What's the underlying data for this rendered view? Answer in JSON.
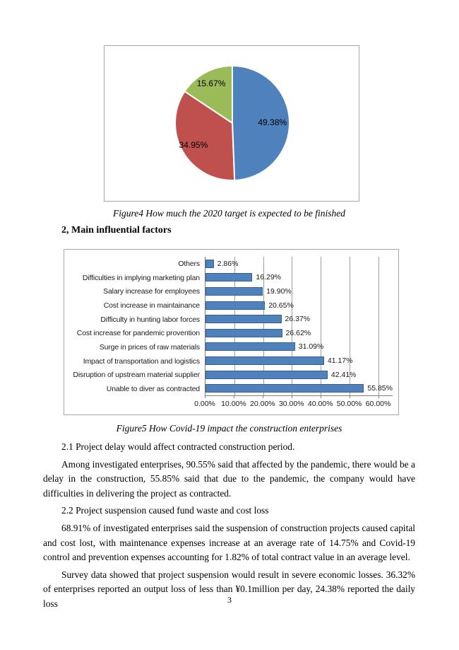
{
  "page": {
    "number": "3"
  },
  "figure4": {
    "caption": "Figure4 How much the 2020 target is expected to be finished"
  },
  "section": {
    "heading": "2, Main influential factors"
  },
  "figure5": {
    "caption": "Figure5 How Covid-19 impact the construction enterprises"
  },
  "body": {
    "h21": "2.1 Project delay would affect contracted construction period.",
    "p21": "Among investigated enterprises, 90.55% said that affected by the pandemic, there would be a delay in the construction, 55.85% said that due to the pandemic, the company would have difficulties in delivering the project as contracted.",
    "h22": "2.2 Project suspension caused fund waste and cost loss",
    "p22": "68.91% of investigated enterprises said the suspension of construction projects caused capital and cost lost, with maintenance expenses increase at an average rate of 14.75% and Covid-19 control and prevention expenses accounting for 1.82% of total contract value in an average level.",
    "p23": "Survey data showed that project suspension would result in severe economic losses. 36.32% of enterprises reported an output loss of less than ¥0.1million per day, 24.38% reported the daily loss"
  },
  "chart_data": [
    {
      "type": "pie",
      "title": "How much the 2020 target is expected to be finished",
      "labels": [
        "49.38%",
        "34.95%",
        "15.67%"
      ],
      "values": [
        49.38,
        34.95,
        15.67
      ],
      "colors": [
        "#4f81bd",
        "#c0504d",
        "#9bbb59"
      ],
      "start_angle_deg_from_top": 0,
      "direction": "clockwise",
      "legend": "none",
      "slice_separator_color": "#ffffff"
    },
    {
      "type": "bar",
      "orientation": "horizontal",
      "title": "How Covid-19 impact the construction enterprises",
      "categories": [
        "Others",
        "Difficulties in implying marketing plan",
        "Salary increase for employees",
        "Cost increase in maintainance",
        "Difficulty in hunting labor forces",
        "Cost increase for pandemic provention",
        "Surge in prices of raw materials",
        "Impact of transportation and logistics",
        "Disruption of upstream material supplier",
        "Unable to diver as contracted"
      ],
      "values": [
        2.86,
        16.29,
        19.9,
        20.65,
        26.37,
        26.62,
        31.09,
        41.17,
        42.41,
        55.85
      ],
      "value_labels": [
        "2.86%",
        "16.29%",
        "19.90%",
        "20.65%",
        "26.37%",
        "26.62%",
        "31.09%",
        "41.17%",
        "42.41%",
        "55.85%"
      ],
      "bar_color": "#4f81bd",
      "bar_border_color": "#3a5f8e",
      "xticks": [
        0,
        10,
        20,
        30,
        40,
        50,
        60
      ],
      "xtick_labels": [
        "0.00%",
        "10.00%",
        "20.00%",
        "30.00%",
        "40.00%",
        "50.00%",
        "60.00%"
      ],
      "xlabel": "",
      "ylabel": "",
      "xlim": [
        0,
        65
      ],
      "grid": true,
      "legend": "none"
    }
  ]
}
